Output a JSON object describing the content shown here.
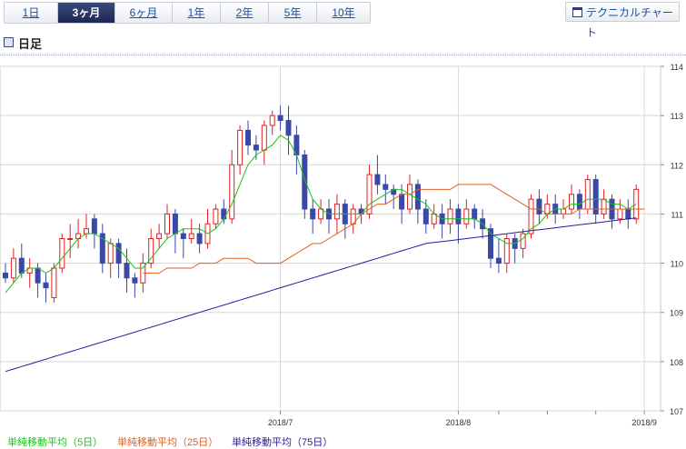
{
  "tabs": [
    {
      "label": "1日",
      "active": false
    },
    {
      "label": "3ヶ月",
      "active": true
    },
    {
      "label": "6ヶ月",
      "active": false
    },
    {
      "label": "1年",
      "active": false
    },
    {
      "label": "2年",
      "active": false
    },
    {
      "label": "5年",
      "active": false
    },
    {
      "label": "10年",
      "active": false
    }
  ],
  "technical_button": {
    "label": "テクニカルチャート",
    "icon": "window-icon"
  },
  "section_title": "日足",
  "colors": {
    "up": "#e02020",
    "down": "#3a48a8",
    "ma5": "#19c219",
    "ma25": "#e0601a",
    "ma75": "#2a1a9a",
    "grid": "#d7d7d7"
  },
  "legend": [
    {
      "label": "単純移動平均（5日）",
      "color": "#19c219"
    },
    {
      "label": "単純移動平均（25日）",
      "color": "#e0601a"
    },
    {
      "label": "単純移動平均（75日）",
      "color": "#2a1a9a"
    }
  ],
  "chart_data": {
    "type": "candlestick",
    "title": "",
    "xlabel": "",
    "ylabel": "",
    "ylim": [
      107,
      114
    ],
    "yticks": [
      107,
      108,
      109,
      110,
      111,
      112,
      113,
      114
    ],
    "xtick_labels": [
      {
        "label": "2018/7",
        "index": 34
      },
      {
        "label": "2018/8",
        "index": 56
      },
      {
        "label": "2018/9",
        "index": 79
      }
    ],
    "extra_gridline_indices": [
      61,
      67,
      73
    ],
    "candles": [
      [
        109.8,
        109.7,
        110.0,
        109.6
      ],
      [
        109.7,
        110.1,
        110.3,
        109.6
      ],
      [
        110.1,
        109.8,
        110.4,
        109.7
      ],
      [
        109.8,
        109.9,
        110.1,
        109.5
      ],
      [
        109.9,
        109.6,
        110.0,
        109.3
      ],
      [
        109.6,
        109.5,
        109.8,
        109.2
      ],
      [
        109.3,
        109.9,
        110.0,
        109.2
      ],
      [
        109.9,
        110.5,
        110.6,
        109.8
      ],
      [
        110.5,
        110.5,
        110.8,
        110.1
      ],
      [
        110.5,
        110.6,
        110.9,
        110.3
      ],
      [
        110.6,
        110.7,
        111.0,
        110.5
      ],
      [
        110.9,
        110.6,
        111.0,
        110.3
      ],
      [
        110.6,
        110.0,
        110.8,
        109.8
      ],
      [
        110.0,
        110.4,
        110.5,
        109.7
      ],
      [
        110.4,
        110.0,
        110.5,
        109.7
      ],
      [
        110.0,
        109.7,
        110.3,
        109.4
      ],
      [
        109.7,
        109.6,
        109.8,
        109.3
      ],
      [
        109.6,
        110.0,
        110.2,
        109.4
      ],
      [
        110.0,
        110.5,
        110.7,
        109.9
      ],
      [
        110.5,
        110.6,
        110.8,
        110.3
      ],
      [
        110.6,
        111.0,
        111.2,
        110.5
      ],
      [
        111.0,
        110.6,
        111.1,
        110.2
      ],
      [
        110.6,
        110.5,
        110.7,
        110.1
      ],
      [
        110.5,
        110.6,
        110.9,
        110.4
      ],
      [
        110.6,
        110.4,
        110.8,
        110.2
      ],
      [
        110.4,
        110.8,
        111.1,
        110.3
      ],
      [
        110.8,
        111.1,
        111.2,
        110.7
      ],
      [
        111.1,
        110.9,
        111.3,
        110.8
      ],
      [
        110.9,
        112.0,
        112.3,
        110.8
      ],
      [
        112.0,
        112.7,
        112.8,
        111.8
      ],
      [
        112.7,
        112.4,
        112.9,
        112.2
      ],
      [
        112.4,
        112.3,
        112.6,
        112.1
      ],
      [
        112.3,
        112.8,
        112.9,
        112.0
      ],
      [
        112.8,
        113.0,
        113.1,
        112.6
      ],
      [
        113.0,
        112.9,
        113.2,
        112.7
      ],
      [
        112.9,
        112.6,
        113.2,
        112.2
      ],
      [
        112.6,
        112.2,
        112.8,
        111.8
      ],
      [
        112.2,
        111.1,
        112.3,
        110.9
      ],
      [
        111.1,
        110.9,
        111.3,
        110.6
      ],
      [
        110.9,
        111.1,
        111.3,
        110.8
      ],
      [
        111.1,
        110.9,
        111.3,
        110.6
      ],
      [
        110.9,
        111.2,
        111.4,
        110.6
      ],
      [
        111.2,
        110.8,
        111.3,
        110.5
      ],
      [
        110.8,
        111.1,
        111.2,
        110.6
      ],
      [
        111.1,
        111.0,
        111.2,
        110.8
      ],
      [
        111.0,
        111.8,
        112.0,
        110.9
      ],
      [
        111.8,
        111.6,
        112.2,
        111.4
      ],
      [
        111.6,
        111.5,
        111.8,
        111.2
      ],
      [
        111.5,
        111.4,
        111.6,
        111.1
      ],
      [
        111.4,
        111.1,
        111.6,
        110.8
      ],
      [
        111.1,
        111.6,
        111.8,
        111.0
      ],
      [
        111.6,
        111.1,
        111.7,
        110.8
      ],
      [
        111.1,
        110.8,
        111.3,
        110.6
      ],
      [
        110.8,
        111.0,
        111.2,
        110.7
      ],
      [
        111.0,
        110.8,
        111.2,
        110.5
      ],
      [
        110.8,
        111.1,
        111.3,
        110.6
      ],
      [
        111.1,
        110.8,
        111.2,
        110.4
      ],
      [
        110.8,
        111.1,
        111.3,
        110.7
      ],
      [
        111.1,
        110.9,
        111.2,
        110.7
      ],
      [
        110.9,
        110.7,
        111.1,
        110.5
      ],
      [
        110.7,
        110.1,
        110.8,
        109.9
      ],
      [
        110.1,
        110.0,
        110.5,
        109.8
      ],
      [
        110.0,
        110.5,
        110.6,
        109.8
      ],
      [
        110.5,
        110.3,
        110.6,
        110.0
      ],
      [
        110.3,
        110.6,
        110.7,
        110.1
      ],
      [
        110.6,
        111.3,
        111.4,
        110.5
      ],
      [
        111.3,
        111.0,
        111.5,
        110.8
      ],
      [
        111.0,
        111.2,
        111.4,
        110.9
      ],
      [
        111.2,
        111.0,
        111.4,
        110.8
      ],
      [
        111.0,
        111.1,
        111.3,
        110.9
      ],
      [
        111.1,
        111.4,
        111.6,
        111.0
      ],
      [
        111.4,
        111.1,
        111.5,
        110.9
      ],
      [
        111.1,
        111.7,
        111.8,
        111.0
      ],
      [
        111.7,
        111.0,
        111.8,
        110.8
      ],
      [
        111.0,
        111.3,
        111.5,
        110.9
      ],
      [
        111.3,
        110.9,
        111.4,
        110.7
      ],
      [
        110.9,
        111.1,
        111.3,
        110.8
      ],
      [
        111.1,
        110.9,
        111.3,
        110.7
      ],
      [
        110.9,
        111.5,
        111.6,
        110.8
      ]
    ],
    "series": [
      {
        "name": "単純移動平均（5日）",
        "values": [
          109.4,
          109.6,
          109.8,
          109.9,
          109.9,
          109.8,
          109.9,
          110.1,
          110.3,
          110.5,
          110.6,
          110.6,
          110.5,
          110.4,
          110.3,
          110.1,
          109.9,
          109.9,
          110.1,
          110.3,
          110.5,
          110.6,
          110.7,
          110.7,
          110.7,
          110.6,
          110.7,
          110.9,
          111.2,
          111.6,
          112.0,
          112.2,
          112.3,
          112.4,
          112.6,
          112.5,
          112.2,
          111.7,
          111.3,
          111.1,
          111.0,
          111.0,
          111.0,
          111.0,
          111.0,
          111.2,
          111.3,
          111.4,
          111.5,
          111.5,
          111.4,
          111.3,
          111.2,
          111.0,
          110.9,
          110.9,
          110.9,
          110.9,
          110.9,
          110.8,
          110.6,
          110.5,
          110.4,
          110.4,
          110.5,
          110.7,
          110.8,
          111.0,
          111.1,
          111.1,
          111.2,
          111.2,
          111.3,
          111.3,
          111.3,
          111.2,
          111.2,
          111.1,
          111.2
        ]
      },
      {
        "name": "単純移動平均（25日）",
        "values": [
          109.8,
          109.8,
          109.8,
          109.9,
          109.9,
          109.9,
          109.9,
          110.0,
          110.0,
          110.0,
          110.1,
          110.1,
          110.1,
          110.1,
          110.0,
          110.0,
          110.0,
          110.0,
          110.1,
          110.2,
          110.3,
          110.4,
          110.4,
          110.5,
          110.6,
          110.7,
          110.8,
          111.0,
          111.1,
          111.2,
          111.2,
          111.3,
          111.4,
          111.4,
          111.5,
          111.5,
          111.5,
          111.5,
          111.5,
          111.6,
          111.6,
          111.6,
          111.6,
          111.6,
          111.5,
          111.4,
          111.3,
          111.2,
          111.1,
          111.1,
          111.0,
          111.0,
          111.0,
          111.0,
          111.1,
          111.1,
          111.1,
          111.1,
          111.1,
          111.1,
          111.1,
          111.1,
          111.1
        ]
      },
      {
        "name": "単純移動平均（75日）",
        "values": [
          107.8,
          107.85,
          107.9,
          107.95,
          108.0,
          108.05,
          108.1,
          108.15,
          108.2,
          108.25,
          108.3,
          108.35,
          108.4,
          108.45,
          108.5,
          108.55,
          108.6,
          108.65,
          108.7,
          108.75,
          108.8,
          108.85,
          108.9,
          108.95,
          109.0,
          109.05,
          109.1,
          109.15,
          109.2,
          109.25,
          109.3,
          109.35,
          109.4,
          109.45,
          109.5,
          109.55,
          109.6,
          109.65,
          109.7,
          109.75,
          109.8,
          109.85,
          109.9,
          109.95,
          110.0,
          110.05,
          110.1,
          110.15,
          110.2,
          110.25,
          110.3,
          110.35,
          110.4,
          110.42,
          110.44,
          110.46,
          110.48,
          110.5,
          110.52,
          110.54,
          110.56,
          110.58,
          110.6,
          110.62,
          110.64,
          110.66,
          110.68,
          110.7,
          110.72,
          110.74,
          110.76,
          110.78,
          110.8,
          110.82,
          110.84,
          110.86,
          110.88,
          110.9,
          110.92
        ]
      }
    ]
  }
}
